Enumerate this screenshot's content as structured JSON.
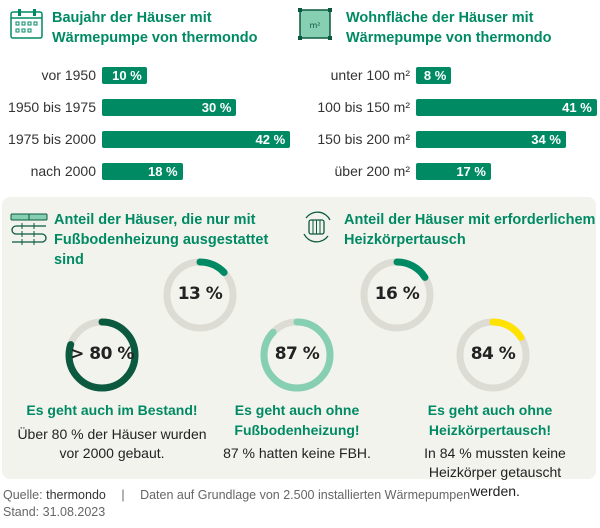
{
  "colors": {
    "green": "#008a63",
    "dark_green": "#0b5a3f",
    "light_green": "#86cfb3",
    "yellow": "#ffe200",
    "track": "#dcdcd4",
    "panel": "#f3f3ee"
  },
  "chart_data": [
    {
      "type": "bar",
      "orientation": "horizontal",
      "title": "Baujahr der Häuser mit Wärmepumpe von thermondo",
      "icon": "calendar-icon",
      "categories": [
        "vor 1950",
        "1950 bis 1975",
        "1975 bis 2000",
        "nach 2000"
      ],
      "values": [
        10,
        30,
        42,
        18
      ],
      "labels": [
        "10 %",
        "30 %",
        "42 %",
        "18 %"
      ]
    },
    {
      "type": "bar",
      "orientation": "horizontal",
      "title": "Wohnfläche der Häuser mit Wärmepumpe von thermondo",
      "icon": "floor-area-icon",
      "icon_text": "m²",
      "categories": [
        "unter 100 m²",
        "100 bis 150 m²",
        "150 bis 200 m²",
        "über 200 m²"
      ],
      "values": [
        8,
        41,
        34,
        17
      ],
      "labels": [
        "8 %",
        "41 %",
        "34 %",
        "17 %"
      ]
    },
    {
      "type": "pie",
      "style": "ring",
      "title": "Anteil der Häuser, die nur mit Fußbodenheizung ausgestattet sind",
      "icon": "floor-heating-icon",
      "value": 13,
      "label": "13 %",
      "color": "green"
    },
    {
      "type": "pie",
      "style": "ring",
      "title": "Anteil der Häuser mit erforderlichem Heizkörpertausch",
      "icon": "radiator-swap-icon",
      "value": 16,
      "label": "16 %",
      "color": "green"
    }
  ],
  "findings": [
    {
      "ring_label": "> 80 %",
      "value": 80,
      "color": "dark_green",
      "heading": "Es geht auch im Bestand!",
      "text": "Über 80 % der Häuser wurden vor 2000 gebaut."
    },
    {
      "ring_label": "87 %",
      "value": 87,
      "color": "light_green",
      "heading": "Es geht auch ohne Fußbodenheizung!",
      "text": "87 % hatten keine FBH."
    },
    {
      "ring_label": "84 %",
      "value": 84,
      "highlighted": 16,
      "color": "yellow",
      "heading": "Es geht auch ohne Heizkörpertausch!",
      "text": "In 84 % mussten keine Heizkörper getauscht werden."
    }
  ],
  "footer": {
    "source_label": "Quelle:",
    "source": "thermondo",
    "separator": "|",
    "note": "Daten auf Grundlage von 2.500 installierten Wärmepumpen",
    "date": "Stand: 31.08.2023"
  }
}
